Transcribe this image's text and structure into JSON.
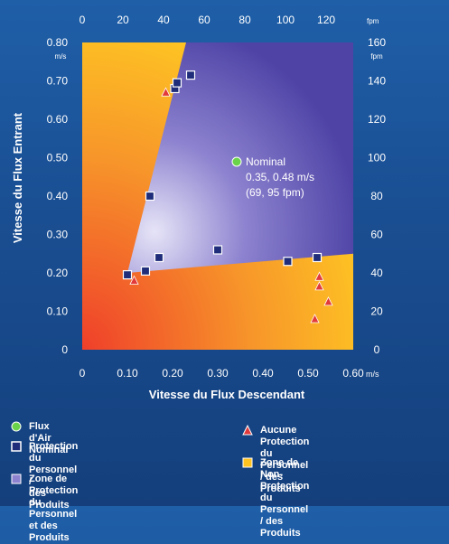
{
  "chart_data": {
    "type": "scatter",
    "xlabel": "Vitesse du Flux Descendant",
    "ylabel": "Vitesse du Flux Entrant",
    "x_unit": "m/s",
    "y_unit": "m/s",
    "top_unit": "fpm",
    "right_unit": "fpm",
    "xlim": [
      0,
      0.6
    ],
    "ylim": [
      0,
      0.8
    ],
    "x_ticks": [
      "0",
      "0.10",
      "0.20",
      "0.30",
      "0.40",
      "0.50",
      "0.60"
    ],
    "y_ticks": [
      "0",
      "0.10",
      "0.20",
      "0.30",
      "0.40",
      "0.50",
      "0.60",
      "0.70",
      "0.80"
    ],
    "top_ticks": [
      "0",
      "20",
      "40",
      "60",
      "80",
      "100",
      "120"
    ],
    "right_ticks": [
      "0",
      "20",
      "40",
      "60",
      "80",
      "100",
      "120",
      "140",
      "160"
    ],
    "nominal": {
      "x": 0.35,
      "y": 0.48,
      "label_line1": "Nominal",
      "label_line2": "0.35, 0.48 m/s",
      "label_line3": "(69, 95 fpm)"
    },
    "protection_zone": [
      [
        0.1,
        0.2
      ],
      [
        0.23,
        0.8
      ],
      [
        0.6,
        0.8
      ],
      [
        0.6,
        0.25
      ]
    ],
    "series": [
      {
        "name": "Protection du Personnel / des Produits",
        "marker": "square",
        "points": [
          [
            0.1,
            0.195
          ],
          [
            0.14,
            0.205
          ],
          [
            0.17,
            0.24
          ],
          [
            0.15,
            0.4
          ],
          [
            0.3,
            0.26
          ],
          [
            0.455,
            0.23
          ],
          [
            0.52,
            0.24
          ],
          [
            0.205,
            0.68
          ],
          [
            0.21,
            0.695
          ],
          [
            0.24,
            0.715
          ]
        ]
      },
      {
        "name": "Aucune Protection du Personnel / des Produits",
        "marker": "triangle",
        "points": [
          [
            0.115,
            0.18
          ],
          [
            0.185,
            0.67
          ],
          [
            0.525,
            0.19
          ],
          [
            0.525,
            0.165
          ],
          [
            0.545,
            0.125
          ],
          [
            0.515,
            0.08
          ]
        ]
      }
    ],
    "colors": {
      "protection_zone_fill": "#5a4fb0",
      "non_protection_light": "#ffc21f",
      "non_protection_dark": "#ef3f2a",
      "nominal_marker": "#6ad34a",
      "square_marker": "#1f2d7a",
      "triangle_marker": "#e23a3a"
    }
  },
  "legend": [
    {
      "symbol": "green-circle",
      "text": "Flux d'Air Nominal"
    },
    {
      "symbol": "square-outline",
      "text": "Protection du Personnel /\ndes Produits"
    },
    {
      "symbol": "square-filled-purple",
      "text": "Zone de Protection du\nPersonnel et des Produits"
    },
    {
      "symbol": "red-triangle",
      "text": "Aucune Protection du\nPersonnel / des Produits"
    },
    {
      "symbol": "orange-square",
      "text": "Zone de Non-Protection\ndu Personnel / des Produits"
    }
  ]
}
